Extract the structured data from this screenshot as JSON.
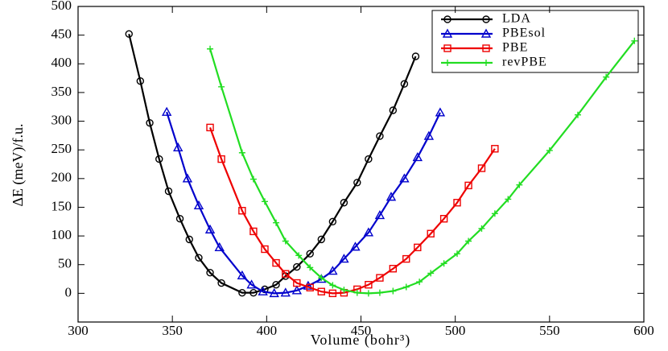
{
  "chart_data": {
    "type": "line",
    "xlabel": "Volume (bohr³)",
    "ylabel": "ΔE (meV)/f.u.",
    "xlim": [
      300,
      600
    ],
    "xticks": [
      300,
      350,
      400,
      450,
      500,
      550,
      600
    ],
    "ylim": [
      -50,
      500
    ],
    "yticks": [
      0,
      50,
      100,
      150,
      200,
      250,
      300,
      350,
      400,
      450,
      500
    ],
    "legend": "upper right",
    "series": [
      {
        "name": "LDA",
        "color": "#000000",
        "marker": "circle",
        "x": [
          327,
          333,
          338,
          343,
          348,
          354,
          359,
          364,
          370,
          376,
          387,
          393,
          399,
          405,
          410,
          416,
          423,
          429,
          435,
          441,
          448,
          454,
          460,
          467,
          473,
          479
        ],
        "values": [
          452,
          370,
          297,
          234,
          178,
          130,
          94,
          62,
          36,
          18,
          1,
          1,
          7,
          15,
          30,
          46,
          69,
          94,
          125,
          158,
          193,
          234,
          274,
          319,
          365,
          413
        ]
      },
      {
        "name": "PBEsol",
        "color": "#0000cc",
        "marker": "triangle",
        "x": [
          347,
          353,
          358,
          364,
          370,
          375,
          387,
          392,
          398,
          404,
          410,
          416,
          422,
          429,
          435,
          441,
          447,
          454,
          460,
          466,
          473,
          480,
          486,
          492
        ],
        "values": [
          316,
          254,
          200,
          153,
          111,
          80,
          31,
          15,
          3,
          0,
          1,
          5,
          13,
          25,
          39,
          60,
          81,
          106,
          136,
          168,
          200,
          237,
          274,
          315
        ]
      },
      {
        "name": "PBE",
        "color": "#ee0000",
        "marker": "square",
        "x": [
          370,
          376,
          387,
          393,
          399,
          405,
          410,
          416,
          423,
          429,
          435,
          441,
          448,
          454,
          460,
          467,
          474,
          480,
          487,
          494,
          501,
          507,
          514,
          521
        ],
        "values": [
          289,
          234,
          144,
          108,
          77,
          53,
          34,
          18,
          10,
          3,
          0,
          1,
          7,
          15,
          27,
          43,
          60,
          80,
          104,
          130,
          158,
          188,
          218,
          252
        ]
      },
      {
        "name": "revPBE",
        "color": "#22dd22",
        "marker": "plus",
        "x": [
          370,
          376,
          387,
          393,
          399,
          405,
          410,
          417,
          423,
          429,
          435,
          441,
          448,
          454,
          460,
          467,
          474,
          481,
          487,
          494,
          501,
          507,
          514,
          521,
          528,
          534,
          550,
          565,
          580,
          595
        ],
        "values": [
          426,
          360,
          245,
          199,
          160,
          123,
          91,
          66,
          45,
          27,
          14,
          6,
          1,
          0,
          1,
          4,
          11,
          20,
          35,
          52,
          69,
          91,
          113,
          139,
          164,
          189,
          249,
          311,
          377,
          440
        ]
      }
    ]
  }
}
